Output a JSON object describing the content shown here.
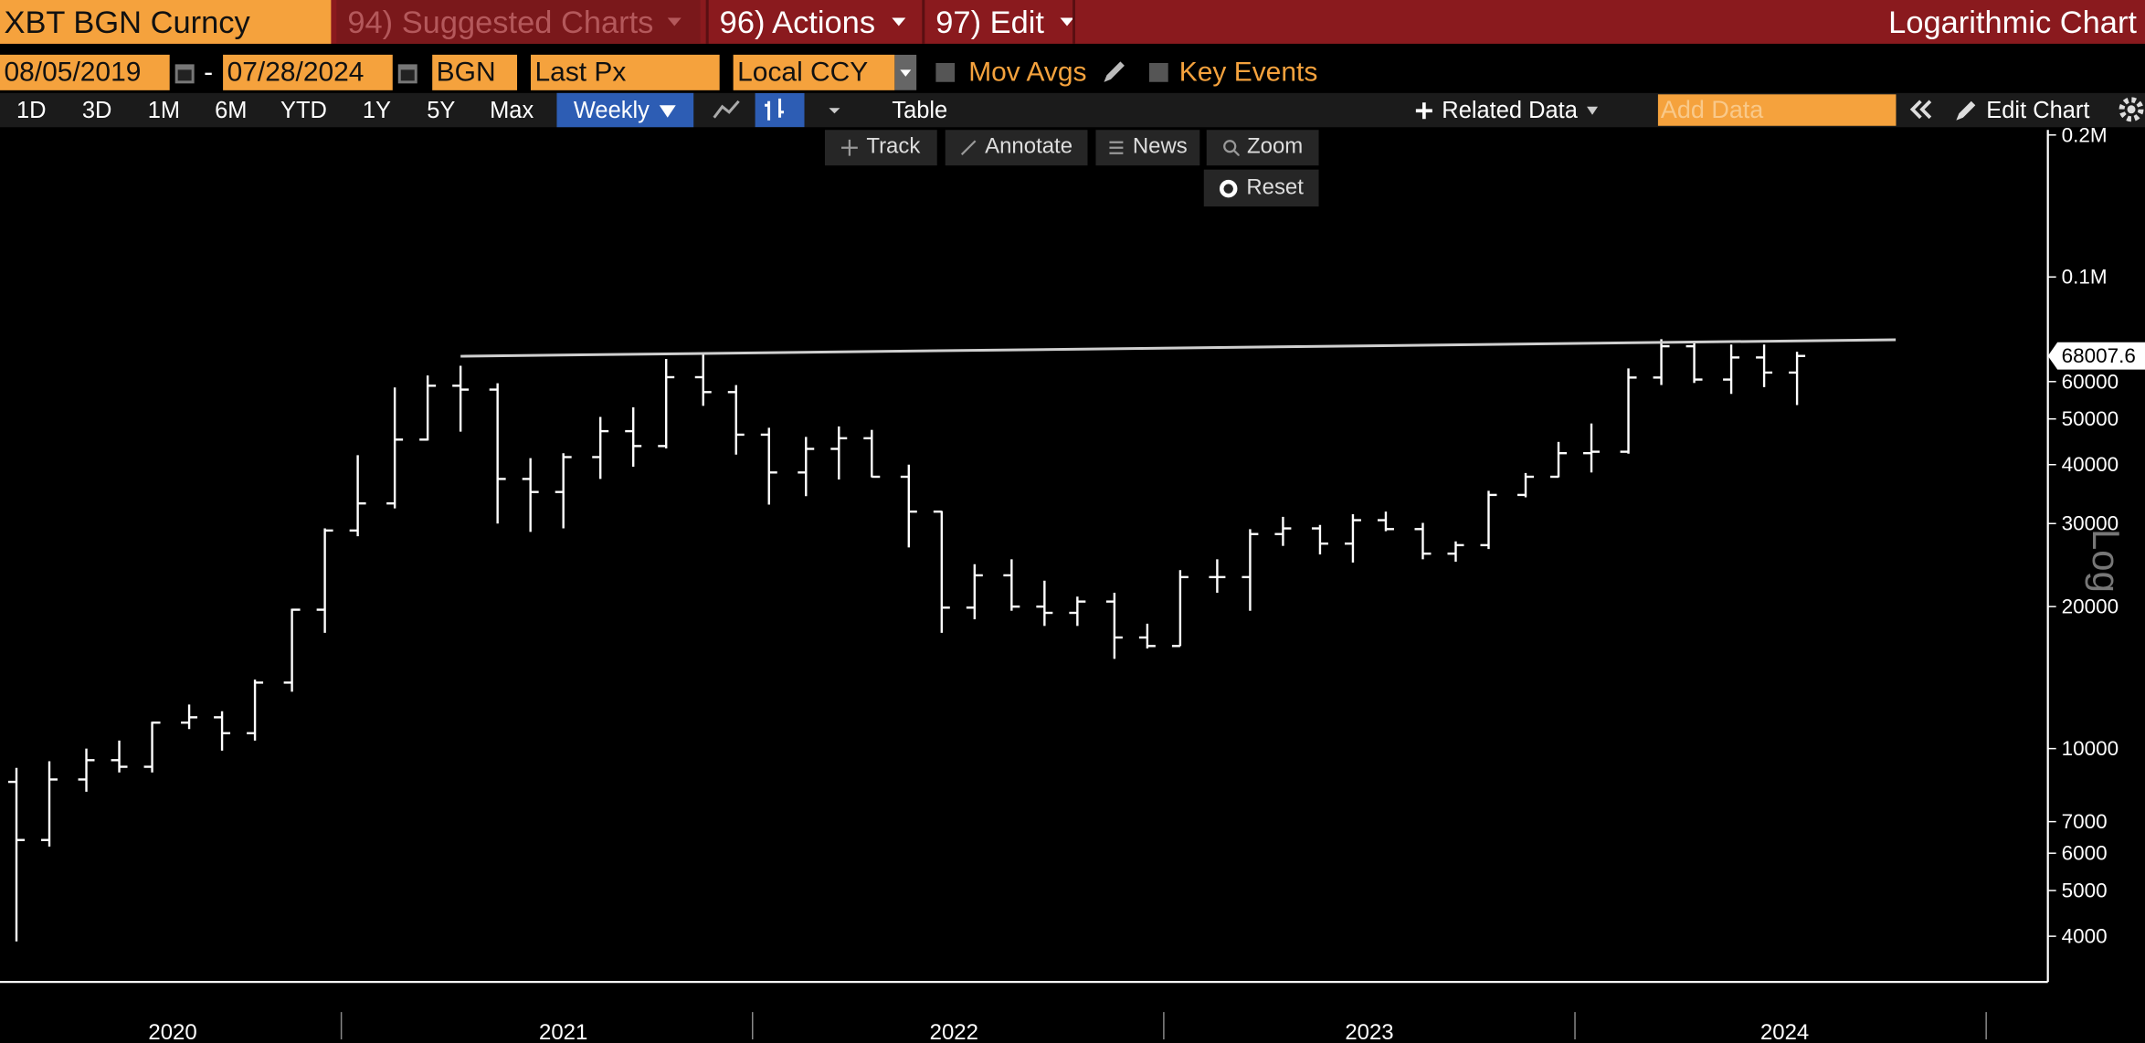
{
  "toolbar": {
    "security": "XBT BGN Curncy",
    "menus": [
      "94) Suggested Charts",
      "96) Actions",
      "97) Edit"
    ],
    "chart_kind": "Logarithmic Chart"
  },
  "settings": {
    "start_date": "08/05/2019",
    "separator": "-",
    "end_date": "07/28/2024",
    "source": "BGN",
    "field": "Last Px",
    "currency": "Local CCY",
    "toggles": [
      "Mov Avgs",
      "Key Events"
    ]
  },
  "periods": [
    "1D",
    "3D",
    "1M",
    "6M",
    "YTD",
    "1Y",
    "5Y",
    "Max"
  ],
  "frequency": "Weekly",
  "view": "Table",
  "related": "Related Data",
  "add_data_placeholder": "Add Data",
  "edit_chart": "Edit Chart",
  "chart_tools": [
    "Track",
    "Annotate",
    "News",
    "Zoom"
  ],
  "reset": "Reset",
  "chart_data": {
    "type": "ohlc",
    "y_axis_label": "Log",
    "log_scale": true,
    "color": "#ffffff",
    "ylim": [
      3200,
      205000
    ],
    "yticks": [
      {
        "value": 200000,
        "label": "0.2M"
      },
      {
        "value": 100000,
        "label": "0.1M"
      },
      60000,
      50000,
      40000,
      30000,
      20000,
      10000,
      7000,
      6000,
      5000,
      4000
    ],
    "xlim": [
      2020.17,
      2025.15
    ],
    "xticks": [
      {
        "value": 2020.59,
        "label": "2020"
      },
      {
        "value": 2021.54,
        "label": "2021"
      },
      {
        "value": 2022.49,
        "label": "2022"
      },
      {
        "value": 2023.5,
        "label": "2023"
      },
      {
        "value": 2024.51,
        "label": "2024"
      }
    ],
    "year_boundaries": [
      2021,
      2022,
      2023,
      2024,
      2025
    ],
    "x": [
      2020.21,
      2020.29,
      2020.38,
      2020.46,
      2020.54,
      2020.63,
      2020.71,
      2020.79,
      2020.88,
      2020.96,
      2021.04,
      2021.13,
      2021.21,
      2021.29,
      2021.38,
      2021.46,
      2021.54,
      2021.63,
      2021.71,
      2021.79,
      2021.88,
      2021.96,
      2022.04,
      2022.13,
      2022.21,
      2022.29,
      2022.38,
      2022.46,
      2022.54,
      2022.63,
      2022.71,
      2022.79,
      2022.88,
      2022.96,
      2023.04,
      2023.13,
      2023.21,
      2023.29,
      2023.38,
      2023.46,
      2023.54,
      2023.63,
      2023.71,
      2023.79,
      2023.88,
      2023.96,
      2024.04,
      2024.13,
      2024.21,
      2024.29,
      2024.38,
      2024.46,
      2024.54
    ],
    "open": [
      8500,
      6400,
      8600,
      9450,
      9150,
      11350,
      11650,
      10780,
      13800,
      19700,
      29000,
      33100,
      45200,
      58800,
      57700,
      37300,
      35000,
      41500,
      47100,
      43800,
      61300,
      57000,
      46300,
      38500,
      43200,
      45500,
      37700,
      31800,
      19900,
      23300,
      20000,
      19400,
      20500,
      17200,
      16500,
      23100,
      23100,
      28500,
      29300,
      27200,
      30500,
      29200,
      25900,
      27000,
      34500,
      37700,
      42300,
      42600,
      61200,
      71300,
      60600,
      67500,
      62700
    ],
    "high": [
      9100,
      9400,
      10000,
      10400,
      11400,
      12400,
      12000,
      14000,
      19800,
      29300,
      41900,
      58300,
      61800,
      64800,
      59500,
      41300,
      42300,
      50500,
      52900,
      67000,
      69000,
      59000,
      47900,
      45800,
      48200,
      47400,
      40000,
      31900,
      24600,
      25200,
      22700,
      21000,
      21400,
      18400,
      23900,
      25200,
      29200,
      31000,
      29800,
      31400,
      31800,
      30100,
      27500,
      35200,
      38400,
      44700,
      48900,
      64000,
      73800,
      72700,
      71900,
      71900,
      69400
    ],
    "low": [
      3900,
      6200,
      8100,
      8900,
      8900,
      11000,
      9900,
      10400,
      13200,
      17600,
      28200,
      32300,
      45000,
      47000,
      30000,
      28800,
      29300,
      37300,
      39600,
      43300,
      53300,
      42000,
      32900,
      34300,
      37200,
      37600,
      26700,
      17600,
      18800,
      19600,
      18200,
      18200,
      15500,
      16300,
      16500,
      21400,
      19600,
      26900,
      25800,
      24800,
      28900,
      25200,
      24900,
      26500,
      34100,
      37600,
      38500,
      42200,
      59000,
      59600,
      56500,
      58400,
      53500
    ],
    "close": [
      6400,
      8600,
      9450,
      9150,
      11350,
      11650,
      10780,
      13800,
      19700,
      29000,
      33100,
      45200,
      58800,
      57700,
      37300,
      35000,
      41500,
      47100,
      43800,
      61300,
      57000,
      46300,
      38500,
      43200,
      45500,
      37700,
      31800,
      19900,
      23300,
      20000,
      19400,
      20500,
      17200,
      16500,
      23100,
      23100,
      28500,
      29300,
      27200,
      30500,
      29200,
      25900,
      27000,
      34500,
      37700,
      42300,
      42600,
      61200,
      71300,
      60600,
      67500,
      62700,
      68000
    ],
    "trendline": {
      "x": [
        2021.29,
        2024.78
      ],
      "values": [
        67900,
        73600
      ]
    },
    "last_price": 68007.6
  }
}
